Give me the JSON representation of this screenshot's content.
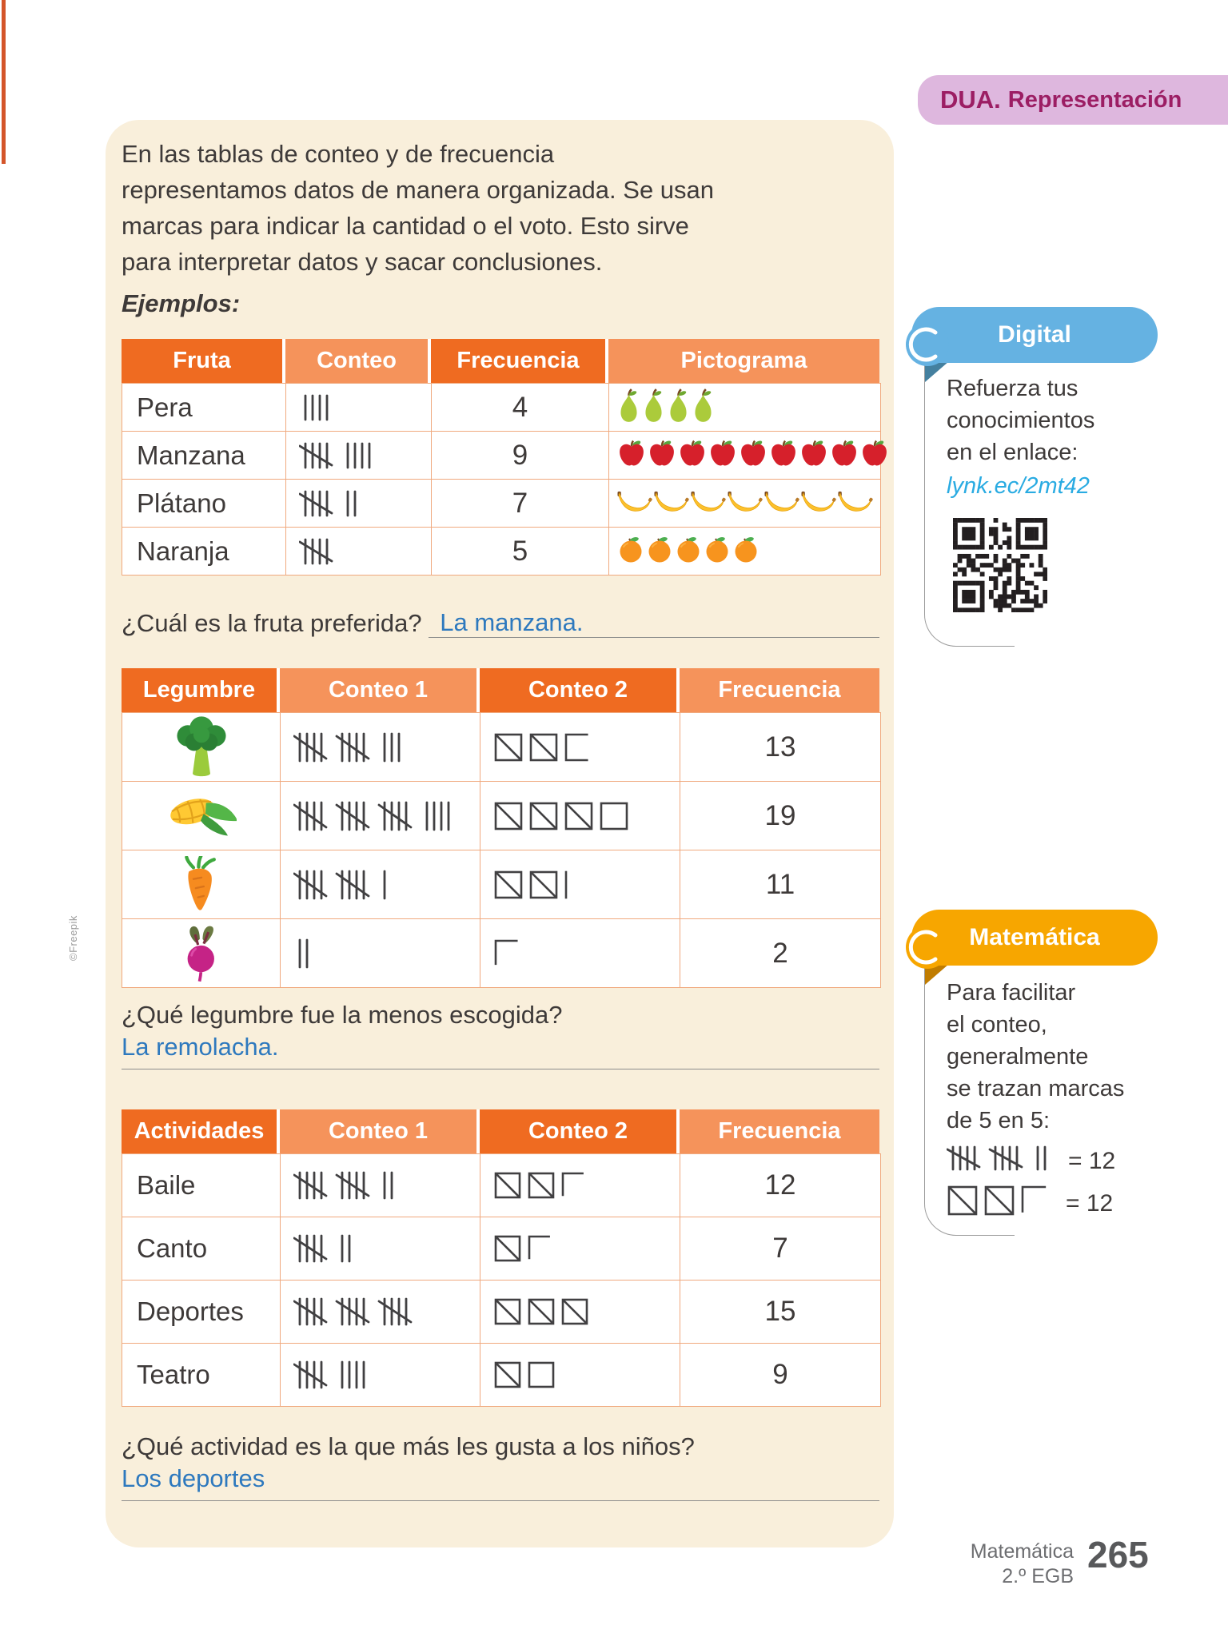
{
  "dua_badge": {
    "bold": "DUA.",
    "label": "Representación"
  },
  "intro_lines": [
    "En las tablas de conteo y de frecuencia",
    "representamos datos de manera organizada. Se usan",
    "marcas para indicar la cantidad o el voto. Esto sirve",
    "para interpretar datos y sacar conclusiones."
  ],
  "ejemplos_label": "Ejemplos:",
  "fruit_table": {
    "headers": [
      "Fruta",
      "Conteo",
      "Frecuencia",
      "Pictograma"
    ],
    "rows": [
      {
        "label": "Pera",
        "tally": 4,
        "frequency": "4",
        "icon": "pear-icon",
        "pictogram_count": 4
      },
      {
        "label": "Manzana",
        "tally": 9,
        "frequency": "9",
        "icon": "apple-icon",
        "pictogram_count": 9
      },
      {
        "label": "Plátano",
        "tally": 7,
        "frequency": "7",
        "icon": "banana-icon",
        "pictogram_count": 7
      },
      {
        "label": "Naranja",
        "tally": 5,
        "frequency": "5",
        "icon": "orange-icon",
        "pictogram_count": 5
      }
    ]
  },
  "question1": {
    "question": "¿Cuál es la fruta preferida? ",
    "answer": "La manzana."
  },
  "legume_table": {
    "headers": [
      "Legumbre",
      "Conteo 1",
      "Conteo 2",
      "Frecuencia"
    ],
    "rows": [
      {
        "icon": "broccoli-icon",
        "tally": 13,
        "squares": 13,
        "frequency": "13"
      },
      {
        "icon": "corn-icon",
        "tally": 19,
        "squares": 19,
        "frequency": "19"
      },
      {
        "icon": "carrot-icon",
        "tally": 11,
        "squares": 11,
        "frequency": "11"
      },
      {
        "icon": "beet-icon",
        "tally": 2,
        "squares": 2,
        "frequency": "2"
      }
    ]
  },
  "question2": {
    "question": "¿Qué legumbre fue la menos escogida?",
    "answer": "La remolacha."
  },
  "activity_table": {
    "headers": [
      "Actividades",
      "Conteo 1",
      "Conteo 2",
      "Frecuencia"
    ],
    "rows": [
      {
        "label": "Baile",
        "tally": 12,
        "squares": 12,
        "frequency": "12"
      },
      {
        "label": "Canto",
        "tally": 7,
        "squares": 7,
        "frequency": "7"
      },
      {
        "label": "Deportes",
        "tally": 15,
        "squares": 15,
        "frequency": "15"
      },
      {
        "label": "Teatro",
        "tally": 9,
        "squares": 9,
        "frequency": "9"
      }
    ]
  },
  "question3": {
    "question": "¿Qué actividad es la que más les gusta a los niños?",
    "answer": "Los deportes"
  },
  "digital_panel": {
    "title": "Digital",
    "text_lines": [
      "Refuerza tus",
      "conocimientos",
      "en el enlace:"
    ],
    "link": "lynk.ec/2mt42",
    "qr_icon": "qr-code"
  },
  "math_panel": {
    "title": "Matemática",
    "text_lines": [
      "Para facilitar",
      "el conteo,",
      "generalmente",
      "se trazan marcas",
      "de 5 en 5:"
    ],
    "tally_example": {
      "count": 12,
      "equals": "= 12"
    },
    "squares_example": {
      "count": 12,
      "equals": "= 12"
    }
  },
  "footer": {
    "subject": "Matemática",
    "grade": "2.º EGB",
    "page_number": "265"
  },
  "credit": "©Freepik",
  "colors": {
    "header_dark_orange": "#EF6B21",
    "header_light_orange": "#F5935B",
    "table_border": "#F0A97E",
    "panel_beige": "#F9EFDB",
    "text_dark": "#3E3A39",
    "answer_blue": "#2E79BE",
    "underline_gray": "#8C8C8C",
    "dua_badge_bg": "#DEB7DE",
    "dua_text": "#9C1E64",
    "digital_blue": "#65B2E2",
    "digital_fold": "#44809F",
    "math_orange": "#F7A600",
    "math_fold": "#C07C00",
    "link_cyan": "#29ABE2",
    "footer_gray": "#6D6E71",
    "red_bar": "#D4552A",
    "tally_ink": "#414042"
  }
}
